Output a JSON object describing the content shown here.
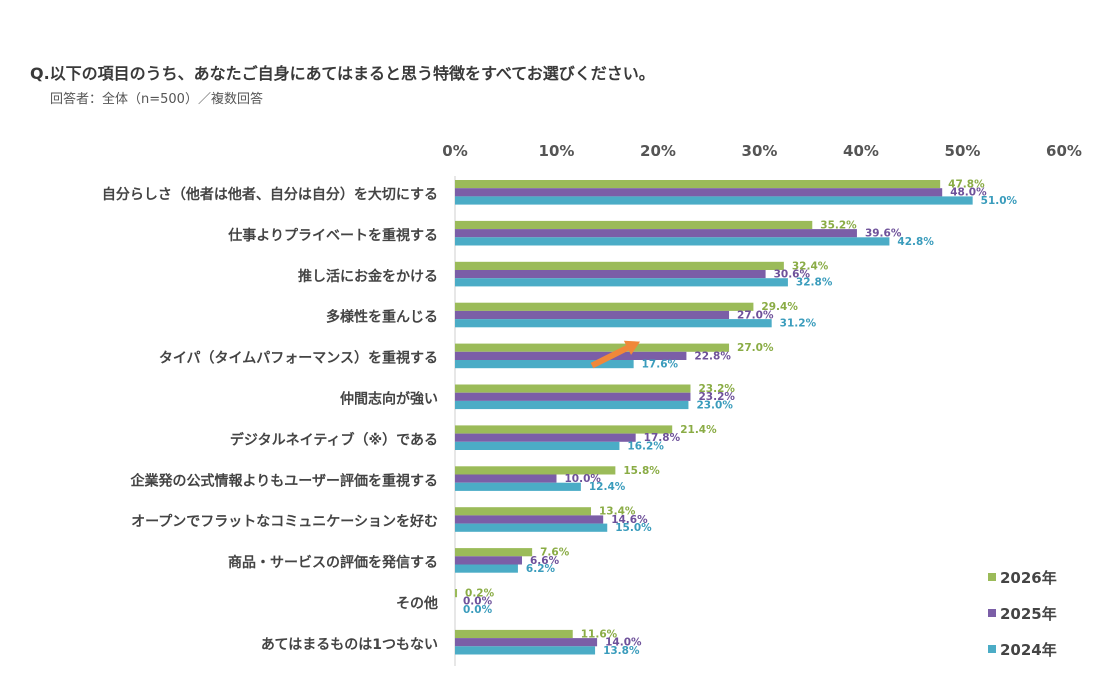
{
  "header": {
    "question": "Q.以下の項目のうち、あなたご自身にあてはまると思う特徴をすべてお選びください。",
    "respondents": "回答者：全体（n=500）／複数回答"
  },
  "chart_data": {
    "type": "bar",
    "orientation": "horizontal",
    "categories": [
      "自分らしさ（他者は他者、自分は自分）を大切にする",
      "仕事よりプライベートを重視する",
      "推し活にお金をかける",
      "多様性を重んじる",
      "タイパ（タイムパフォーマンス）を重視する",
      "仲間志向が強い",
      "デジタルネイティブ（※）である",
      "企業発の公式情報よりもユーザー評価を重視する",
      "オープンでフラットなコミュニケーションを好む",
      "商品・サービスの評価を発信する",
      "その他",
      "あてはまるものは1つもない"
    ],
    "series": [
      {
        "name": "2026年",
        "color": "#9bbb59",
        "values": [
          47.8,
          35.2,
          32.4,
          29.4,
          27.0,
          23.2,
          21.4,
          15.8,
          13.4,
          7.6,
          0.2,
          11.6
        ]
      },
      {
        "name": "2025年",
        "color": "#7b5ea7",
        "values": [
          48.0,
          39.6,
          30.6,
          27.0,
          22.8,
          23.2,
          17.8,
          10.0,
          14.6,
          6.6,
          0.0,
          14.0
        ]
      },
      {
        "name": "2024年",
        "color": "#4bacc6",
        "values": [
          51.0,
          42.8,
          32.8,
          31.2,
          17.6,
          23.0,
          16.2,
          12.4,
          15.0,
          6.2,
          0.0,
          13.8
        ]
      }
    ],
    "xlim": [
      0,
      60
    ],
    "xticks": [
      "0%",
      "10%",
      "20%",
      "30%",
      "40%",
      "50%",
      "60%"
    ],
    "value_suffix": "%",
    "legend_position": "bottom-right",
    "grid": false,
    "annotation": {
      "type": "arrow",
      "color": "#f0883a",
      "category": "タイパ（タイムパフォーマンス）を重視する"
    }
  }
}
